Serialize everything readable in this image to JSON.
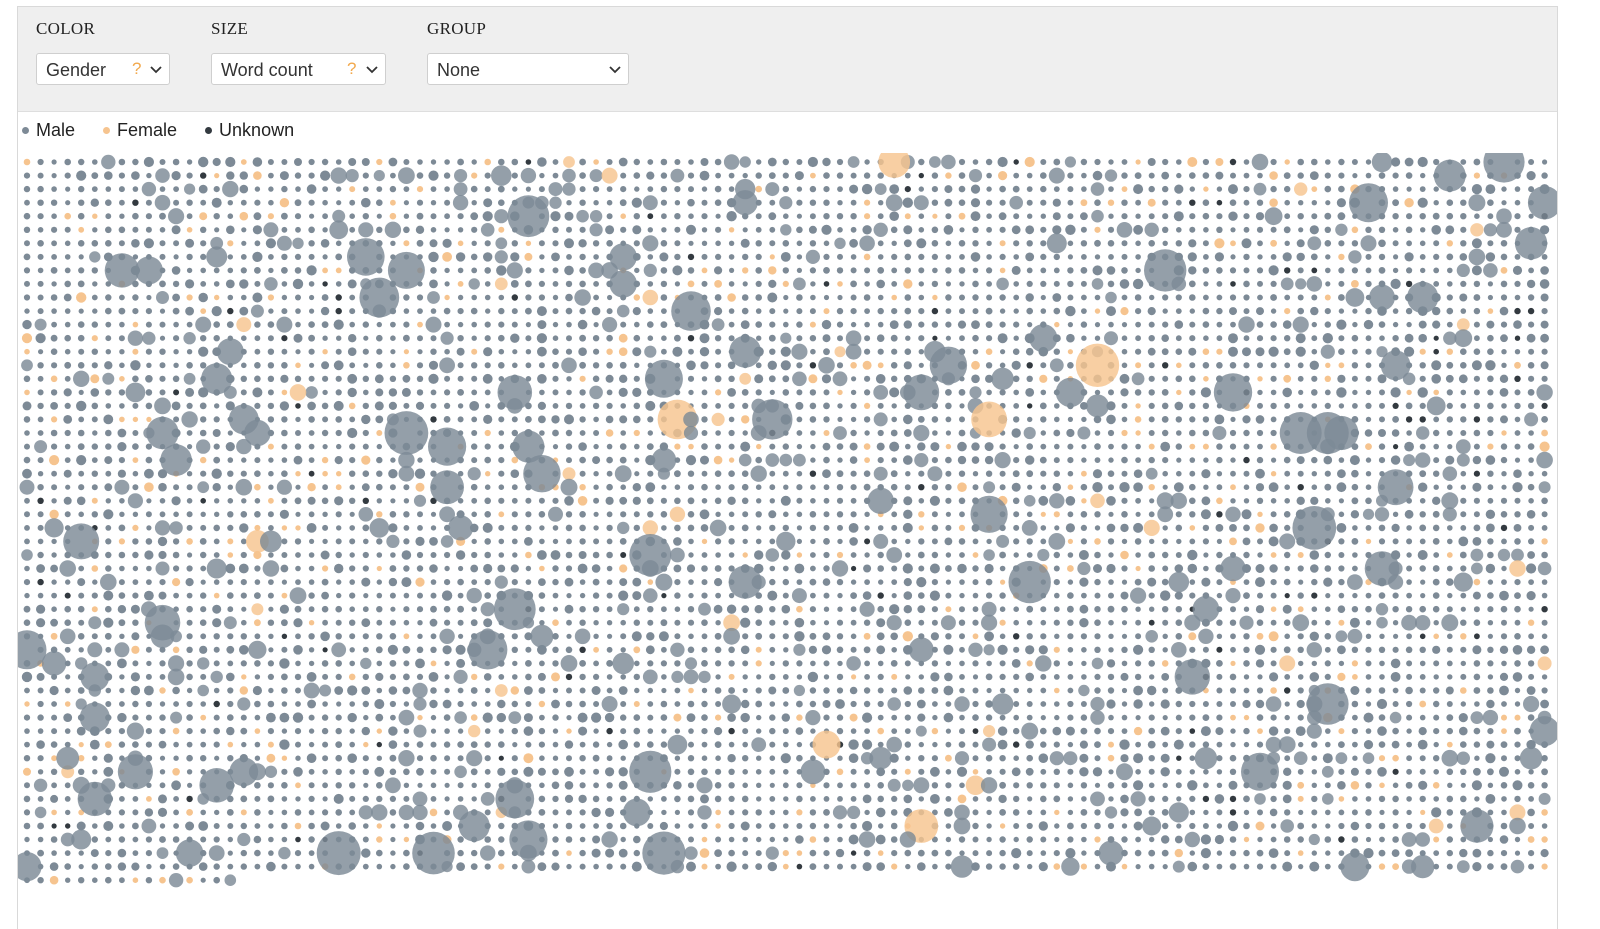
{
  "controls": {
    "color": {
      "label": "COLOR",
      "value": "Gender",
      "help": "?"
    },
    "size": {
      "label": "SIZE",
      "value": "Word count",
      "help": "?"
    },
    "group": {
      "label": "GROUP",
      "value": "None"
    }
  },
  "colors": {
    "male": "#7d8a96",
    "female": "#f6c48f",
    "unknown": "#333a40",
    "help": "#f2a94d"
  },
  "chart_data": {
    "type": "scatter",
    "title": "",
    "encoding": {
      "color": "Gender",
      "size": "Word count",
      "group": "None"
    },
    "legend": [
      {
        "name": "Male",
        "color": "#7d8a96"
      },
      {
        "name": "Female",
        "color": "#f6c48f"
      },
      {
        "name": "Unknown",
        "color": "#333a40"
      }
    ],
    "legend_position": "top-left",
    "layout": "dot grid, one dot per character, dot area proportional to word count",
    "grid_columns": 113,
    "grid_rows": 54,
    "last_row_count": 16,
    "female_share": 0.08,
    "unknown_share": 0.02,
    "word_count_scale": [
      0,
      12000
    ]
  }
}
